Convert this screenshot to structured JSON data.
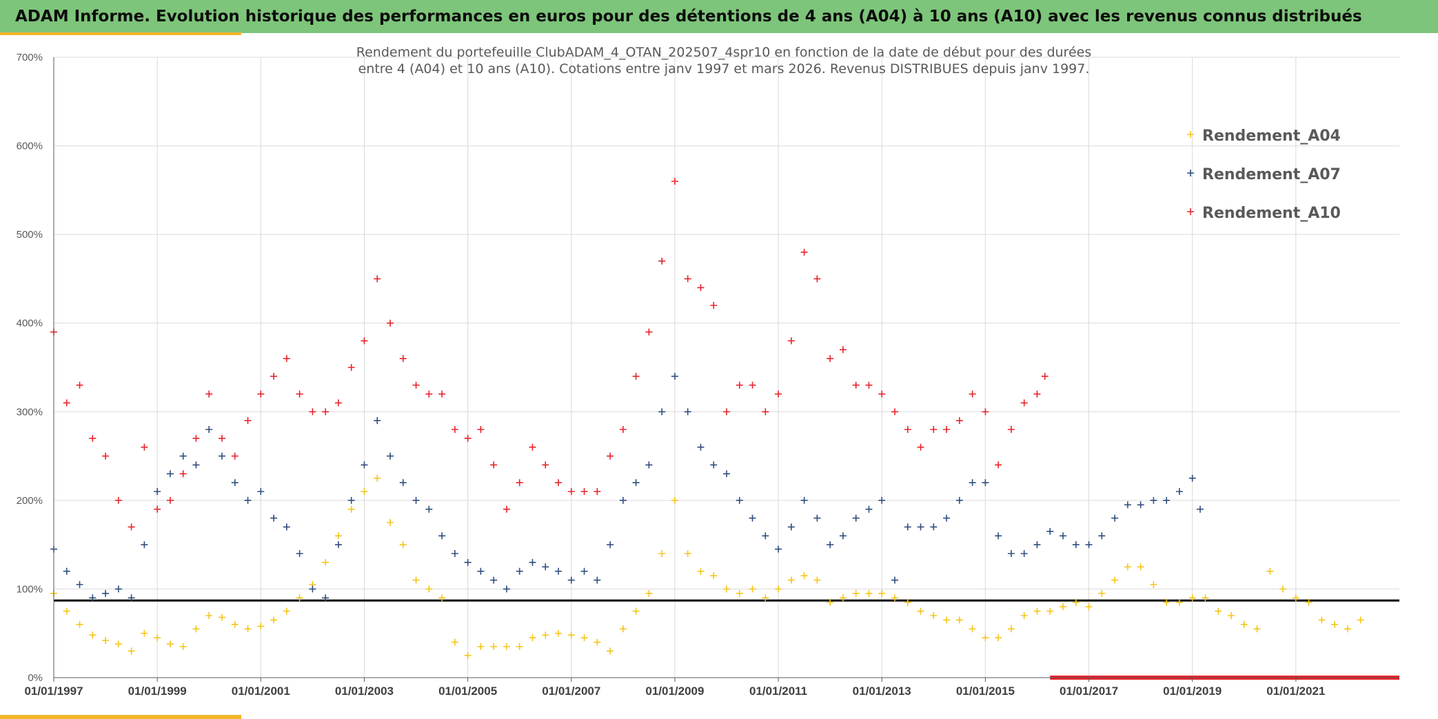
{
  "header": {
    "title": "ADAM Informe. Evolution historique des performances en euros pour des détentions de 4 ans (A04) à 10 ans (A10) avec les revenus connus distribués"
  },
  "chart_data": {
    "type": "scatter",
    "title_lines": [
      "Rendement du portefeuille ClubADAM_4_OTAN_202507_4spr10  en fonction de la date de début pour des durées",
      "entre 4 (A04) et 10 ans (A10). Cotations entre janv 1997 et mars 2026. Revenus DISTRIBUES depuis janv 1997."
    ],
    "xlabel": "",
    "ylabel": "",
    "x_tick_labels": [
      "01/01/1997",
      "01/01/1999",
      "01/01/2001",
      "01/01/2003",
      "01/01/2005",
      "01/01/2007",
      "01/01/2009",
      "01/01/2011",
      "01/01/2013",
      "01/01/2015",
      "01/01/2017",
      "01/01/2019",
      "01/01/2021"
    ],
    "x_tick_years": [
      1997,
      1999,
      2001,
      2003,
      2005,
      2007,
      2009,
      2011,
      2013,
      2015,
      2017,
      2019,
      2021
    ],
    "y_tick_labels": [
      "0%",
      "100%",
      "200%",
      "300%",
      "400%",
      "500%",
      "600%",
      "700%"
    ],
    "y_tick_values": [
      0,
      100,
      200,
      300,
      400,
      500,
      600,
      700
    ],
    "xlim": [
      1997.0,
      2023.0
    ],
    "ylim": [
      0,
      700
    ],
    "grid": true,
    "legend_position": "top-right",
    "reference_line": {
      "y": 87,
      "color": "#000000"
    },
    "series": [
      {
        "name": "Rendement_A04",
        "color": "#f5c518",
        "x": [
          1997.0,
          1997.25,
          1997.5,
          1997.75,
          1998.0,
          1998.25,
          1998.5,
          1998.75,
          1999.0,
          1999.25,
          1999.5,
          1999.75,
          2000.0,
          2000.25,
          2000.5,
          2000.75,
          2001.0,
          2001.25,
          2001.5,
          2001.75,
          2002.0,
          2002.25,
          2002.5,
          2002.75,
          2003.0,
          2003.25,
          2003.5,
          2003.75,
          2004.0,
          2004.25,
          2004.5,
          2004.75,
          2005.0,
          2005.25,
          2005.5,
          2005.75,
          2006.0,
          2006.25,
          2006.5,
          2006.75,
          2007.0,
          2007.25,
          2007.5,
          2007.75,
          2008.0,
          2008.25,
          2008.5,
          2008.75,
          2009.0,
          2009.25,
          2009.5,
          2009.75,
          2010.0,
          2010.25,
          2010.5,
          2010.75,
          2011.0,
          2011.25,
          2011.5,
          2011.75,
          2012.0,
          2012.25,
          2012.5,
          2012.75,
          2013.0,
          2013.25,
          2013.5,
          2013.75,
          2014.0,
          2014.25,
          2014.5,
          2014.75,
          2015.0,
          2015.25,
          2015.5,
          2015.75,
          2016.0,
          2016.25,
          2016.5,
          2016.75,
          2017.0,
          2017.25,
          2017.5,
          2017.75,
          2018.0,
          2018.25,
          2018.5,
          2018.75,
          2019.0,
          2019.25,
          2019.5,
          2019.75,
          2020.0,
          2020.25,
          2020.5,
          2020.75,
          2021.0,
          2021.25,
          2021.5,
          2021.75,
          2022.0,
          2022.25
        ],
        "values": [
          95,
          75,
          60,
          48,
          42,
          38,
          30,
          50,
          45,
          38,
          35,
          55,
          70,
          68,
          60,
          55,
          58,
          65,
          75,
          90,
          105,
          130,
          160,
          190,
          210,
          225,
          175,
          150,
          110,
          100,
          90,
          40,
          25,
          35,
          35,
          35,
          35,
          45,
          48,
          50,
          48,
          45,
          40,
          30,
          55,
          75,
          95,
          140,
          200,
          140,
          120,
          115,
          100,
          95,
          100,
          90,
          100,
          110,
          115,
          110,
          85,
          90,
          95,
          95,
          95,
          90,
          85,
          75,
          70,
          65,
          65,
          55,
          45,
          45,
          55,
          70,
          75,
          75,
          80,
          85,
          80,
          95,
          110,
          125,
          125,
          105,
          85,
          85,
          90,
          90,
          75,
          70,
          60,
          55,
          120,
          100,
          90,
          85,
          65,
          60,
          55,
          65
        ]
      },
      {
        "name": "Rendement_A07",
        "color": "#2f4e7e",
        "x": [
          1997.0,
          1997.25,
          1997.5,
          1997.75,
          1998.0,
          1998.25,
          1998.5,
          1998.75,
          1999.0,
          1999.25,
          1999.5,
          1999.75,
          2000.0,
          2000.25,
          2000.5,
          2000.75,
          2001.0,
          2001.25,
          2001.5,
          2001.75,
          2002.0,
          2002.25,
          2002.5,
          2002.75,
          2003.0,
          2003.25,
          2003.5,
          2003.75,
          2004.0,
          2004.25,
          2004.5,
          2004.75,
          2005.0,
          2005.25,
          2005.5,
          2005.75,
          2006.0,
          2006.25,
          2006.5,
          2006.75,
          2007.0,
          2007.25,
          2007.5,
          2007.75,
          2008.0,
          2008.25,
          2008.5,
          2008.75,
          2009.0,
          2009.25,
          2009.5,
          2009.75,
          2010.0,
          2010.25,
          2010.5,
          2010.75,
          2011.0,
          2011.25,
          2011.5,
          2011.75,
          2012.0,
          2012.25,
          2012.5,
          2012.75,
          2013.0,
          2013.25,
          2013.5,
          2013.75,
          2014.0,
          2014.25,
          2014.5,
          2014.75,
          2015.0,
          2015.25,
          2015.5,
          2015.75,
          2016.0,
          2016.25,
          2016.5,
          2016.75,
          2017.0,
          2017.25,
          2017.5,
          2017.75,
          2018.0,
          2018.25,
          2018.5,
          2018.75,
          2019.0,
          2019.15
        ],
        "values": [
          145,
          120,
          105,
          90,
          95,
          100,
          90,
          150,
          210,
          230,
          250,
          240,
          280,
          250,
          220,
          200,
          210,
          180,
          170,
          140,
          100,
          90,
          150,
          200,
          240,
          290,
          250,
          220,
          200,
          190,
          160,
          140,
          130,
          120,
          110,
          100,
          120,
          130,
          125,
          120,
          110,
          120,
          110,
          150,
          200,
          220,
          240,
          300,
          340,
          300,
          260,
          240,
          230,
          200,
          180,
          160,
          145,
          170,
          200,
          180,
          150,
          160,
          180,
          190,
          200,
          110,
          170,
          170,
          170,
          180,
          200,
          220,
          220,
          160,
          140,
          140,
          150,
          165,
          160,
          150,
          150,
          160,
          180,
          195,
          195,
          200,
          200,
          210,
          225,
          190
        ]
      },
      {
        "name": "Rendement_A10",
        "color": "#e8232a",
        "x": [
          1997.0,
          1997.25,
          1997.5,
          1997.75,
          1998.0,
          1998.25,
          1998.5,
          1998.75,
          1999.0,
          1999.25,
          1999.5,
          1999.75,
          2000.0,
          2000.25,
          2000.5,
          2000.75,
          2001.0,
          2001.25,
          2001.5,
          2001.75,
          2002.0,
          2002.25,
          2002.5,
          2002.75,
          2003.0,
          2003.25,
          2003.5,
          2003.75,
          2004.0,
          2004.25,
          2004.5,
          2004.75,
          2005.0,
          2005.25,
          2005.5,
          2005.75,
          2006.0,
          2006.25,
          2006.5,
          2006.75,
          2007.0,
          2007.25,
          2007.5,
          2007.75,
          2008.0,
          2008.25,
          2008.5,
          2008.75,
          2009.0,
          2009.25,
          2009.5,
          2009.75,
          2010.0,
          2010.25,
          2010.5,
          2010.75,
          2011.0,
          2011.25,
          2011.5,
          2011.75,
          2012.0,
          2012.25,
          2012.5,
          2012.75,
          2013.0,
          2013.25,
          2013.5,
          2013.75,
          2014.0,
          2014.25,
          2014.5,
          2014.75,
          2015.0,
          2015.25,
          2015.5,
          2015.75,
          2016.0,
          2016.15
        ],
        "values": [
          390,
          310,
          330,
          270,
          250,
          200,
          170,
          260,
          190,
          200,
          230,
          270,
          320,
          270,
          250,
          290,
          320,
          340,
          360,
          320,
          300,
          300,
          310,
          350,
          380,
          450,
          400,
          360,
          330,
          320,
          320,
          280,
          270,
          280,
          240,
          190,
          220,
          260,
          240,
          220,
          210,
          210,
          210,
          250,
          280,
          340,
          390,
          470,
          560,
          450,
          440,
          420,
          300,
          330,
          330,
          300,
          320,
          380,
          480,
          450,
          360,
          370,
          330,
          330,
          320,
          300,
          280,
          260,
          280,
          280,
          290,
          320,
          300,
          240,
          280,
          310,
          320,
          340
        ]
      }
    ],
    "bottom_band": {
      "x_start": 2016.25,
      "x_end": 2023.0,
      "y": 0,
      "color": "#e8232a"
    }
  }
}
